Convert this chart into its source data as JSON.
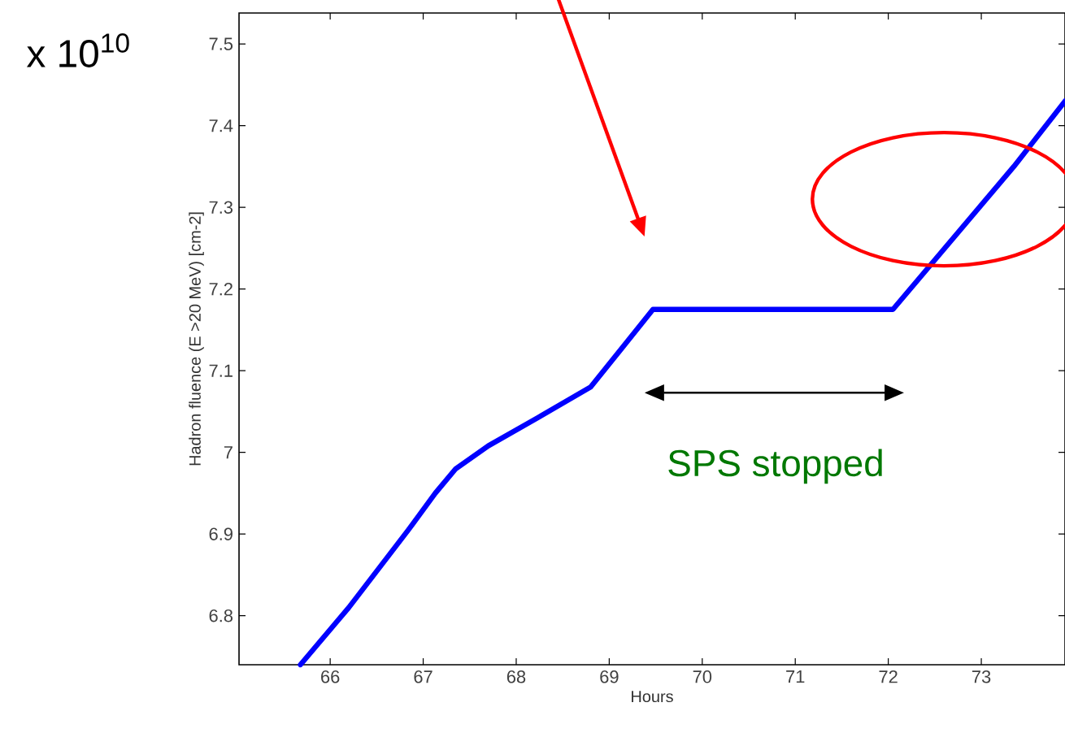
{
  "chart_data": {
    "type": "line",
    "xlabel": "Hours",
    "ylabel": "Hadron fluence (E >20 MeV) [cm-2]",
    "annotations": [
      "x 10$^{10}$",
      "SPS stopped"
    ],
    "x": [
      65.68,
      66.2,
      66.84,
      67.13,
      67.35,
      67.7,
      68.24,
      68.8,
      69.47,
      72.05,
      73.35,
      73.9
    ],
    "series": [
      {
        "color": "#0000ff",
        "values": [
          6.74,
          6.81,
          6.905,
          6.95,
          6.98,
          7.008,
          7.043,
          7.08,
          7.175,
          7.175,
          7.35,
          7.43
        ]
      }
    ],
    "xlim": [
      65.02,
      73.9
    ],
    "ylim": [
      6.74,
      7.538
    ],
    "xticks": [
      66,
      67,
      68,
      69,
      70,
      71,
      72,
      73
    ],
    "yticks": [
      6.8,
      6.9,
      {
        "value": 7,
        "label": "7"
      },
      7.1,
      7.2,
      7.3,
      7.4,
      7.5
    ],
    "grid": false,
    "marker": "none",
    "line_style": "solid"
  }
}
